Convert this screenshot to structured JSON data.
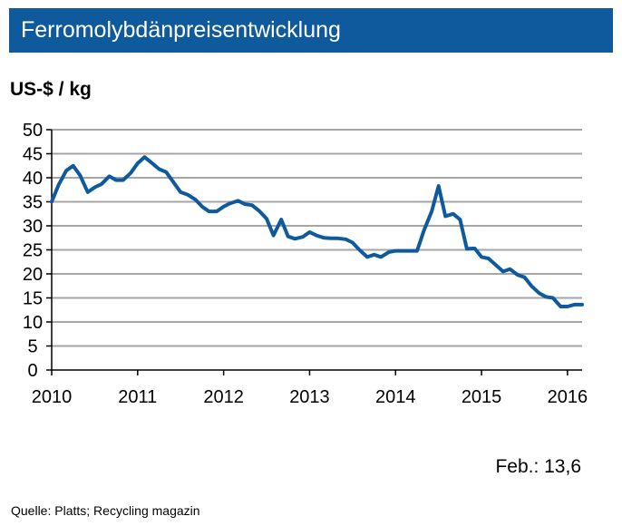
{
  "chart_data": {
    "type": "line",
    "title": "Ferromolybdänpreisentwicklung",
    "ylabel": "US-$ / kg",
    "xlabel": "",
    "ylim": [
      0,
      50
    ],
    "xlim": [
      2010,
      2016.17
    ],
    "yticks": [
      "0",
      "5",
      "10",
      "15",
      "20",
      "25",
      "30",
      "35",
      "40",
      "45",
      "50"
    ],
    "xticks": [
      "2010",
      "2011",
      "2012",
      "2013",
      "2014",
      "2015",
      "2016"
    ],
    "grid": true,
    "line_color": "#0f5a9c",
    "series": [
      {
        "name": "",
        "points": [
          [
            2010.0,
            35.0
          ],
          [
            2010.08,
            38.5
          ],
          [
            2010.17,
            41.5
          ],
          [
            2010.25,
            42.5
          ],
          [
            2010.33,
            40.5
          ],
          [
            2010.42,
            37.0
          ],
          [
            2010.5,
            38.0
          ],
          [
            2010.58,
            38.7
          ],
          [
            2010.67,
            40.3
          ],
          [
            2010.75,
            39.5
          ],
          [
            2010.83,
            39.5
          ],
          [
            2010.92,
            41.0
          ],
          [
            2011.0,
            43.0
          ],
          [
            2011.08,
            44.3
          ],
          [
            2011.17,
            43.0
          ],
          [
            2011.25,
            41.8
          ],
          [
            2011.33,
            41.2
          ],
          [
            2011.42,
            39.0
          ],
          [
            2011.5,
            37.0
          ],
          [
            2011.58,
            36.5
          ],
          [
            2011.67,
            35.5
          ],
          [
            2011.75,
            34.0
          ],
          [
            2011.83,
            33.0
          ],
          [
            2011.92,
            33.0
          ],
          [
            2012.0,
            34.0
          ],
          [
            2012.08,
            34.7
          ],
          [
            2012.17,
            35.2
          ],
          [
            2012.25,
            34.5
          ],
          [
            2012.33,
            34.3
          ],
          [
            2012.42,
            33.0
          ],
          [
            2012.5,
            31.5
          ],
          [
            2012.58,
            28.0
          ],
          [
            2012.67,
            31.3
          ],
          [
            2012.75,
            27.8
          ],
          [
            2012.83,
            27.3
          ],
          [
            2012.92,
            27.7
          ],
          [
            2013.0,
            28.7
          ],
          [
            2013.08,
            28.0
          ],
          [
            2013.17,
            27.5
          ],
          [
            2013.25,
            27.4
          ],
          [
            2013.33,
            27.4
          ],
          [
            2013.42,
            27.2
          ],
          [
            2013.5,
            26.5
          ],
          [
            2013.58,
            25.0
          ],
          [
            2013.67,
            23.5
          ],
          [
            2013.75,
            24.0
          ],
          [
            2013.83,
            23.5
          ],
          [
            2013.92,
            24.5
          ],
          [
            2014.0,
            24.8
          ],
          [
            2014.08,
            24.8
          ],
          [
            2014.17,
            24.8
          ],
          [
            2014.25,
            24.8
          ],
          [
            2014.33,
            29.0
          ],
          [
            2014.42,
            33.0
          ],
          [
            2014.5,
            38.3
          ],
          [
            2014.58,
            32.0
          ],
          [
            2014.67,
            32.5
          ],
          [
            2014.75,
            31.3
          ],
          [
            2014.83,
            25.2
          ],
          [
            2014.92,
            25.3
          ],
          [
            2015.0,
            23.5
          ],
          [
            2015.08,
            23.2
          ],
          [
            2015.17,
            21.8
          ],
          [
            2015.25,
            20.5
          ],
          [
            2015.33,
            21.0
          ],
          [
            2015.42,
            19.8
          ],
          [
            2015.5,
            19.3
          ],
          [
            2015.58,
            17.5
          ],
          [
            2015.67,
            16.0
          ],
          [
            2015.75,
            15.2
          ],
          [
            2015.83,
            15.0
          ],
          [
            2015.92,
            13.2
          ],
          [
            2016.0,
            13.2
          ],
          [
            2016.08,
            13.6
          ],
          [
            2016.17,
            13.6
          ]
        ]
      }
    ],
    "annotation": "Feb.: 13,6",
    "source": "Quelle:  Platts; Recycling magazin"
  }
}
